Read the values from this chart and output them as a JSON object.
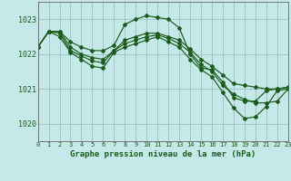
{
  "title": "Graphe pression niveau de la mer (hPa)",
  "background_color": "#c5e8e8",
  "grid_color": "#a0c8c8",
  "line_color": "#1a5c1a",
  "xlim": [
    0,
    23
  ],
  "ylim": [
    1019.5,
    1023.5
  ],
  "yticks": [
    1020,
    1021,
    1022,
    1023
  ],
  "xticks": [
    0,
    1,
    2,
    3,
    4,
    5,
    6,
    7,
    8,
    9,
    10,
    11,
    12,
    13,
    14,
    15,
    16,
    17,
    18,
    19,
    20,
    21,
    22,
    23
  ],
  "series": [
    {
      "x": [
        0,
        1,
        2,
        3,
        4,
        5,
        6,
        7,
        8,
        9,
        10,
        11,
        12,
        13,
        14,
        15,
        16,
        17,
        18,
        19,
        20,
        21,
        22,
        23
      ],
      "y": [
        1022.2,
        1022.65,
        1022.65,
        1022.35,
        1022.2,
        1022.1,
        1022.1,
        1022.25,
        1022.85,
        1023.0,
        1023.1,
        1023.05,
        1023.0,
        1022.75,
        1022.0,
        1021.6,
        1021.55,
        1021.2,
        1020.75,
        1020.65,
        1020.65,
        1020.95,
        1021.0,
        1021.05
      ]
    },
    {
      "x": [
        0,
        1,
        2,
        3,
        4,
        5,
        6,
        7,
        8,
        9,
        10,
        11,
        12,
        13,
        14,
        15,
        16,
        17,
        18,
        19,
        20,
        21,
        22,
        23
      ],
      "y": [
        1022.2,
        1022.65,
        1022.65,
        1022.2,
        1022.0,
        1021.9,
        1021.85,
        1022.1,
        1022.4,
        1022.5,
        1022.6,
        1022.6,
        1022.5,
        1022.4,
        1022.15,
        1021.85,
        1021.65,
        1021.4,
        1021.15,
        1021.1,
        1021.05,
        1021.0,
        1021.0,
        1021.05
      ]
    },
    {
      "x": [
        0,
        1,
        2,
        3,
        4,
        5,
        6,
        7,
        8,
        9,
        10,
        11,
        12,
        13,
        14,
        15,
        16,
        17,
        18,
        19,
        20,
        21,
        22,
        23
      ],
      "y": [
        1022.2,
        1022.65,
        1022.6,
        1022.1,
        1021.95,
        1021.8,
        1021.75,
        1022.1,
        1022.3,
        1022.4,
        1022.5,
        1022.55,
        1022.45,
        1022.3,
        1022.05,
        1021.7,
        1021.5,
        1021.1,
        1020.85,
        1020.7,
        1020.6,
        1020.6,
        1020.65,
        1021.0
      ]
    },
    {
      "x": [
        0,
        1,
        2,
        3,
        4,
        5,
        6,
        7,
        8,
        9,
        10,
        11,
        12,
        13,
        14,
        15,
        16,
        17,
        18,
        19,
        20,
        21,
        22,
        23
      ],
      "y": [
        1022.2,
        1022.65,
        1022.5,
        1022.05,
        1021.85,
        1021.65,
        1021.6,
        1022.05,
        1022.2,
        1022.3,
        1022.4,
        1022.5,
        1022.35,
        1022.2,
        1021.85,
        1021.55,
        1021.35,
        1020.9,
        1020.45,
        1020.15,
        1020.2,
        1020.5,
        1020.95,
        1021.0
      ]
    }
  ]
}
